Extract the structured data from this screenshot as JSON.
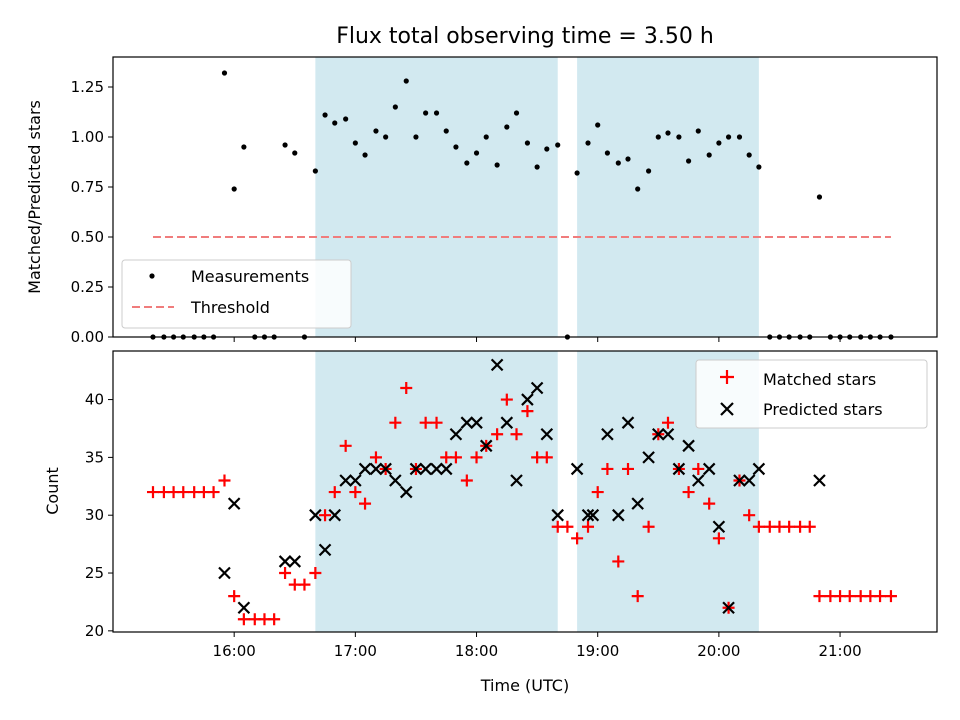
{
  "chart_data": {
    "title": "Flux total observing time = 3.50 h",
    "xlabel": "Time (UTC)",
    "x_ticks": [
      16,
      17,
      18,
      19,
      20,
      21
    ],
    "x_tick_labels": [
      "16:00",
      "17:00",
      "18:00",
      "19:00",
      "20:00",
      "21:00"
    ],
    "xlim": [
      15.0,
      21.8
    ],
    "shaded_intervals": [
      [
        16.67,
        18.67
      ],
      [
        18.83,
        20.33
      ]
    ],
    "colors": {
      "shade": "#d2e9f0",
      "threshold": "#f07c7c",
      "matched": "#ff0000",
      "predicted": "#000000",
      "points": "#000000"
    },
    "top": {
      "type": "scatter",
      "ylabel": "Matched/Predicted stars",
      "ylim": [
        0,
        1.4
      ],
      "y_ticks": [
        0,
        0.25,
        0.5,
        0.75,
        1.0,
        1.25
      ],
      "y_tick_labels": [
        "0.00",
        "0.25",
        "0.50",
        "0.75",
        "1.00",
        "1.25"
      ],
      "legend_position": "lower-left",
      "legend": {
        "measurements": "Measurements",
        "threshold": "Threshold"
      },
      "threshold": {
        "value": 0.5,
        "x_range": [
          15.33,
          21.42
        ]
      },
      "x": [
        15.33,
        15.42,
        15.5,
        15.58,
        15.67,
        15.75,
        15.83,
        15.92,
        16.0,
        16.08,
        16.17,
        16.25,
        16.33,
        16.42,
        16.5,
        16.58,
        16.67,
        16.75,
        16.83,
        16.92,
        17.0,
        17.08,
        17.17,
        17.25,
        17.33,
        17.42,
        17.5,
        17.58,
        17.67,
        17.75,
        17.83,
        17.92,
        18.0,
        18.08,
        18.17,
        18.25,
        18.33,
        18.42,
        18.5,
        18.58,
        18.67,
        18.75,
        18.83,
        18.92,
        19.0,
        19.08,
        19.17,
        19.25,
        19.33,
        19.42,
        19.5,
        19.58,
        19.67,
        19.75,
        19.83,
        19.92,
        20.0,
        20.08,
        20.17,
        20.25,
        20.33,
        20.42,
        20.5,
        20.58,
        20.67,
        20.75,
        20.83,
        20.92,
        21.0,
        21.08,
        21.17,
        21.25,
        21.33,
        21.42
      ],
      "y": [
        0,
        0,
        0,
        0,
        0,
        0,
        0,
        1.32,
        0.74,
        0.95,
        0,
        0,
        0,
        0.96,
        0.92,
        0,
        0.83,
        1.11,
        1.07,
        1.09,
        0.97,
        0.91,
        1.03,
        1.0,
        1.15,
        1.28,
        1.0,
        1.12,
        1.12,
        1.03,
        0.95,
        0.87,
        0.92,
        1.0,
        0.86,
        1.05,
        1.12,
        0.97,
        0.85,
        0.94,
        0.96,
        0,
        0.82,
        0.97,
        1.06,
        0.92,
        0.87,
        0.89,
        0.74,
        0.83,
        1.0,
        1.02,
        1.0,
        0.88,
        1.03,
        0.91,
        0.97,
        1.0,
        1.0,
        0.91,
        0.85,
        0,
        0,
        0,
        0,
        0,
        0.7,
        0,
        0,
        0,
        0,
        0,
        0,
        0
      ]
    },
    "bottom": {
      "type": "scatter",
      "ylabel": "Count",
      "ylim": [
        19.9,
        44.2
      ],
      "y_ticks": [
        20,
        25,
        30,
        35,
        40
      ],
      "y_tick_labels": [
        "20",
        "25",
        "30",
        "35",
        "40"
      ],
      "legend_position": "upper-right",
      "series": [
        {
          "name": "Matched stars",
          "marker": "plus",
          "x": [
            15.33,
            15.42,
            15.5,
            15.58,
            15.67,
            15.75,
            15.83,
            15.92,
            16.0,
            16.08,
            16.17,
            16.25,
            16.33,
            16.42,
            16.5,
            16.58,
            16.67,
            16.75,
            16.83,
            16.92,
            17.0,
            17.08,
            17.17,
            17.25,
            17.33,
            17.42,
            17.5,
            17.58,
            17.67,
            17.75,
            17.83,
            17.92,
            18.0,
            18.08,
            18.17,
            18.25,
            18.33,
            18.42,
            18.5,
            18.58,
            18.67,
            18.75,
            18.83,
            18.92,
            19.0,
            19.08,
            19.17,
            19.25,
            19.33,
            19.42,
            19.5,
            19.58,
            19.67,
            19.75,
            19.83,
            19.92,
            20.0,
            20.08,
            20.17,
            20.25,
            20.33,
            20.42,
            20.5,
            20.58,
            20.67,
            20.75,
            20.83,
            20.92,
            21.0,
            21.08,
            21.17,
            21.25,
            21.33,
            21.42
          ],
          "y": [
            32,
            32,
            32,
            32,
            32,
            32,
            32,
            33,
            23,
            21,
            21,
            21,
            21,
            25,
            24,
            24,
            25,
            30,
            32,
            36,
            32,
            31,
            35,
            34,
            38,
            41,
            34,
            38,
            38,
            35,
            35,
            33,
            35,
            36,
            37,
            40,
            37,
            39,
            35,
            35,
            29,
            29,
            28,
            29,
            32,
            34,
            26,
            34,
            23,
            29,
            37,
            38,
            34,
            32,
            34,
            31,
            28,
            22,
            33,
            30,
            29,
            29,
            29,
            29,
            29,
            29,
            23,
            23,
            23,
            23,
            23,
            23,
            23,
            23
          ]
        },
        {
          "name": "Predicted stars",
          "marker": "x",
          "x": [
            15.92,
            16.0,
            16.08,
            16.42,
            16.5,
            16.67,
            16.75,
            16.83,
            16.92,
            17.0,
            17.08,
            17.17,
            17.25,
            17.33,
            17.42,
            17.5,
            17.58,
            17.67,
            17.75,
            17.83,
            17.92,
            18.0,
            18.08,
            18.17,
            18.25,
            18.33,
            18.42,
            18.5,
            18.58,
            18.67,
            18.83,
            18.92,
            18.96,
            19.08,
            19.17,
            19.25,
            19.33,
            19.42,
            19.5,
            19.58,
            19.67,
            19.75,
            19.83,
            19.92,
            20.0,
            20.08,
            20.17,
            20.25,
            20.33,
            20.83
          ],
          "y": [
            25,
            31,
            22,
            26,
            26,
            30,
            27,
            30,
            33,
            33,
            34,
            34,
            34,
            33,
            32,
            34,
            34,
            34,
            34,
            37,
            38,
            38,
            36,
            43,
            38,
            33,
            40,
            41,
            37,
            30,
            34,
            30,
            30,
            37,
            30,
            38,
            31,
            35,
            37,
            37,
            34,
            36,
            33,
            34,
            29,
            22,
            33,
            33,
            34,
            33
          ]
        }
      ]
    }
  }
}
